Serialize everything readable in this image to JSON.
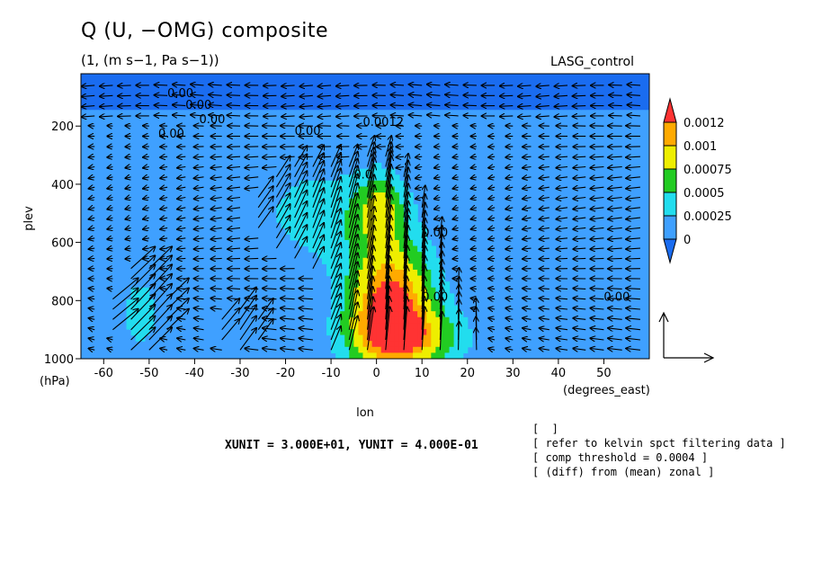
{
  "header": {
    "title": "Q (U, −OMG) composite",
    "subtitle": "(1, (m s−1, Pa s−1))",
    "model": "LASG_control"
  },
  "footer": {
    "xunit": "XUNIT = 3.000E+01, YUNIT = 4.000E-01",
    "notes": [
      "[  ]",
      "[ refer to kelvin spct filtering data ]",
      "[ comp threshold = 0.0004 ]",
      "[ (diff) from (mean) zonal ]"
    ]
  },
  "chart_data": {
    "type": "heatmap",
    "title": "Q (U, −OMG) composite",
    "xlabel": "lon",
    "xunits": "(degrees_east)",
    "ylabel": "plev",
    "yunits": "(hPa)",
    "xlim": [
      -65,
      60
    ],
    "ylim": [
      1000,
      0
    ],
    "x_ticks": [
      -60,
      -50,
      -40,
      -30,
      -20,
      -10,
      0,
      10,
      20,
      30,
      40,
      50
    ],
    "y_ticks": [
      200,
      400,
      600,
      800,
      1000
    ],
    "colorbar": {
      "levels": [
        0,
        0.00025,
        0.0005,
        0.00075,
        0.001,
        0.0012
      ],
      "labels": [
        "0",
        "0.00025",
        "0.0005",
        "0.00075",
        "0.001",
        "0.0012"
      ],
      "colors": [
        "#1a6cf0",
        "#3fa0ff",
        "#22ddee",
        "#22cc22",
        "#eeee00",
        "#ffaa00",
        "#ff3333"
      ]
    },
    "contour_labels": [
      "0.00",
      "0.00",
      "0.00",
      "0.00",
      "0.00",
      "0.0012",
      "0.0",
      "0.00",
      "0.00",
      "0.00"
    ],
    "vector_reference": {
      "x": 30,
      "y": 0.4
    },
    "field": {
      "description_free": true,
      "blobs": [
        {
          "lon": 3,
          "plev": 820,
          "amp": 0.00135,
          "slon": 7,
          "splev": 160
        },
        {
          "lon": 8,
          "plev": 930,
          "amp": 0.0006,
          "slon": 9,
          "splev": 70
        },
        {
          "lon": 1,
          "plev": 480,
          "amp": 0.0006,
          "slon": 4,
          "splev": 90
        },
        {
          "lon": -12,
          "plev": 500,
          "amp": 0.0004,
          "slon": 10,
          "splev": 120
        },
        {
          "lon": -52,
          "plev": 840,
          "amp": 0.0003,
          "slon": 5,
          "splev": 150
        },
        {
          "lon": -30,
          "plev": 900,
          "amp": 0.00025,
          "slon": 4,
          "splev": 80
        }
      ]
    }
  }
}
